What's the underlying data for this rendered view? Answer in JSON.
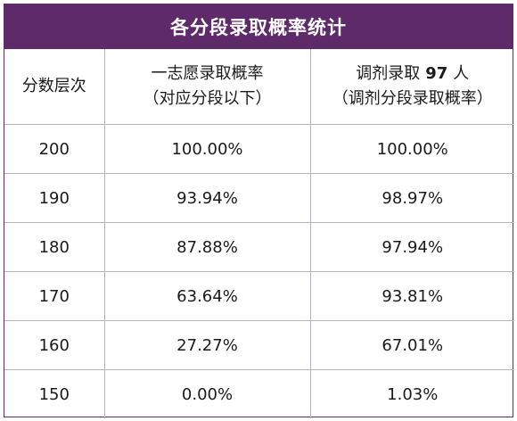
{
  "title": "各分段录取概率统计",
  "header": {
    "col1": "分数层次",
    "col2_line1": "一志愿录取概率",
    "col2_line2": "（对应分段以下）",
    "col3_prefix": "调剂录取",
    "col3_count": "97",
    "col3_suffix": "人",
    "col3_line2": "（调剂分段录取概率）"
  },
  "rows": [
    {
      "score": "200",
      "first_choice": "100.00%",
      "adjusted": "100.00%"
    },
    {
      "score": "190",
      "first_choice": "93.94%",
      "adjusted": "98.97%"
    },
    {
      "score": "180",
      "first_choice": "87.88%",
      "adjusted": "97.94%"
    },
    {
      "score": "170",
      "first_choice": "63.64%",
      "adjusted": "93.81%"
    },
    {
      "score": "160",
      "first_choice": "27.27%",
      "adjusted": "67.01%"
    },
    {
      "score": "150",
      "first_choice": "0.00%",
      "adjusted": "1.03%"
    }
  ],
  "colors": {
    "header_bg": "#5e2a69",
    "header_text": "#ffffff",
    "grid": "#b9b3bd"
  }
}
